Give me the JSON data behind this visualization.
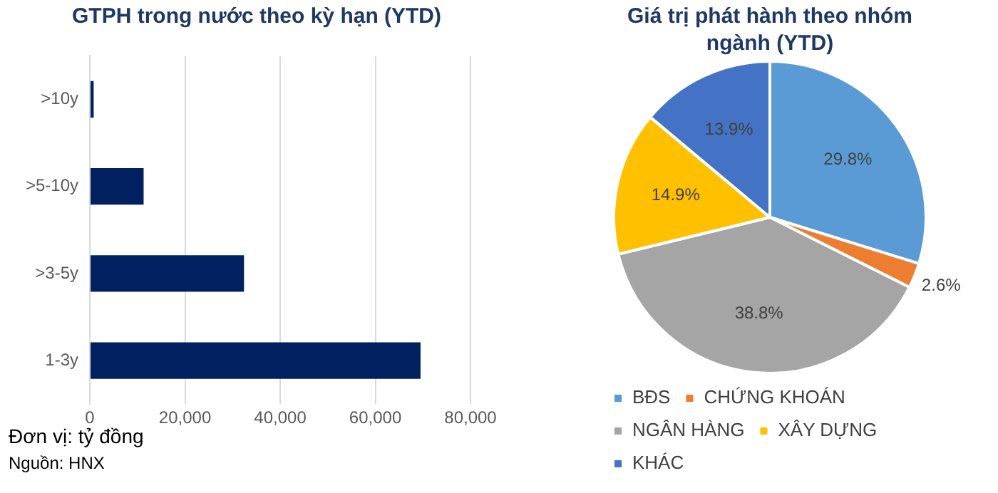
{
  "chart_data": [
    {
      "type": "bar",
      "title": "GTPH trong nước theo kỳ hạn (YTD)",
      "orientation": "horizontal",
      "categories": [
        ">10y",
        ">5-10y",
        ">3-5y",
        "1-3y"
      ],
      "values": [
        800,
        11300,
        32400,
        69500
      ],
      "color": "#002060",
      "xlim": [
        0,
        80000
      ],
      "xticks": [
        {
          "value": 0,
          "label": "0"
        },
        {
          "value": 20000,
          "label": "20,000"
        },
        {
          "value": 40000,
          "label": "40,000"
        },
        {
          "value": 60000,
          "label": "60,000"
        },
        {
          "value": 80000,
          "label": "80,000"
        }
      ],
      "grid": "x",
      "legend": false,
      "annotations": [
        "Đơn vị: tỷ đồng",
        "Nguồn: HNX"
      ]
    },
    {
      "type": "pie",
      "title": "Giá trị phát hành theo nhóm ngành (YTD)",
      "categories": [
        "BĐS",
        "CHỨNG KHOÁN",
        "NGÂN HÀNG",
        "XÂY DỰNG",
        "KHÁC"
      ],
      "values": [
        29.8,
        2.6,
        38.8,
        14.9,
        13.9
      ],
      "colors": [
        "#5b9bd5",
        "#ed7d31",
        "#a5a5a5",
        "#ffc000",
        "#4472c4"
      ],
      "value_labels": [
        "29.8%",
        "2.6%",
        "38.8%",
        "14.9%",
        "13.9%"
      ],
      "legend": "bottom"
    }
  ]
}
